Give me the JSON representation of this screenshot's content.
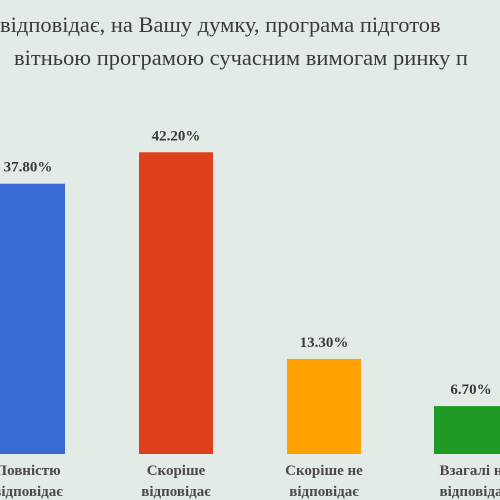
{
  "title_lines": [
    "відповідає, на Вашу думку, програма підготов",
    "вітньою програмою сучасним вимогам ринку п"
  ],
  "chart_data": {
    "type": "bar",
    "categories": [
      [
        "Повністю",
        "відповідає"
      ],
      [
        "Скоріше",
        "відповідає"
      ],
      [
        "Скоріше не",
        "відповідає"
      ],
      [
        "Взагалі н",
        "відповіда"
      ]
    ],
    "values": [
      37.8,
      42.2,
      13.3,
      6.7
    ],
    "data_labels": [
      "37.80%",
      "42.20%",
      "13.30%",
      "6.70%"
    ],
    "colors": [
      "#3a6bd5",
      "#de3f1c",
      "#ffa101",
      "#1e9a24"
    ],
    "ylim": [
      0,
      50
    ],
    "grid": false,
    "legend": "none"
  }
}
